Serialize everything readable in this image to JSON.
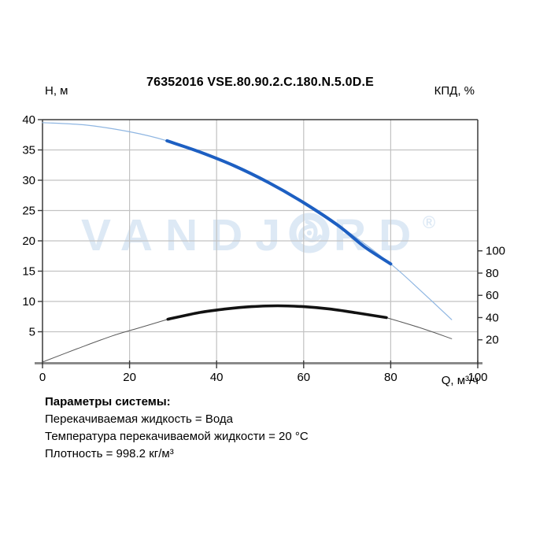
{
  "header": {
    "title": "76352016 VSE.80.90.2.C.180.N.5.0D.E"
  },
  "watermark": {
    "brand_left": "VANDJ",
    "brand_right": "RD",
    "registered_mark": "®",
    "color": "#dde9f5"
  },
  "colors": {
    "pump_operating": "#1d5fc2",
    "pump_extended": "#8fb6e2",
    "efficiency_operating": "#121212",
    "efficiency_extended": "#5a5a5a",
    "gridline": "#c2c2c2",
    "plot_border": "#3a3a3a",
    "bottom_axis": "#8a8a8a"
  },
  "chart_data": {
    "type": "line",
    "title": "76352016 VSE.80.90.2.C.180.N.5.0D.E",
    "x_axis": {
      "label": "Q, м³/ч",
      "min": 0,
      "max": 100,
      "ticks": [
        0,
        20,
        40,
        60,
        80,
        100
      ],
      "gridlines": [
        20,
        40,
        60,
        80
      ]
    },
    "y_axis_left": {
      "label": "Н, м",
      "min": 0,
      "max": 40,
      "ticks": [
        5,
        10,
        15,
        20,
        25,
        30,
        35,
        40
      ],
      "gridlines": [
        5,
        10,
        15,
        20,
        25,
        30,
        35
      ]
    },
    "y_axis_right": {
      "label": "КПД, %",
      "min": 0,
      "max": 218,
      "ticks": [
        20,
        40,
        60,
        80,
        100
      ]
    },
    "series": [
      {
        "name": "pump-curve-extended",
        "axis": "left",
        "color": "#8fb6e2",
        "width": 1.2,
        "points": [
          [
            0,
            39.5
          ],
          [
            10,
            39.1
          ],
          [
            20,
            38.0
          ],
          [
            28.6,
            36.5
          ],
          [
            40,
            33.6
          ],
          [
            50,
            30.3
          ],
          [
            60,
            26.3
          ],
          [
            70,
            21.6
          ],
          [
            80,
            16.2
          ],
          [
            87,
            11.7
          ],
          [
            94,
            7.0
          ]
        ]
      },
      {
        "name": "efficiency-curve-extended-rise",
        "axis": "right",
        "color": "#5a5a5a",
        "width": 1,
        "points": [
          [
            0,
            0
          ],
          [
            8,
            12.0
          ],
          [
            16,
            23.5
          ],
          [
            22,
            30.5
          ],
          [
            28.8,
            38.5
          ]
        ]
      },
      {
        "name": "efficiency-curve-extended-tail",
        "axis": "right",
        "color": "#5a5a5a",
        "width": 1,
        "points": [
          [
            79,
            40.0
          ],
          [
            87,
            30.5
          ],
          [
            94,
            21.0
          ]
        ]
      },
      {
        "name": "pump-curve-operating",
        "axis": "left",
        "color": "#1d5fc2",
        "width": 4,
        "points": [
          [
            28.6,
            36.5
          ],
          [
            36,
            34.7
          ],
          [
            44,
            32.4
          ],
          [
            52,
            29.6
          ],
          [
            60,
            26.3
          ],
          [
            68,
            22.5
          ],
          [
            74,
            19.0
          ],
          [
            80,
            16.2
          ]
        ]
      },
      {
        "name": "efficiency-curve-operating",
        "axis": "right",
        "color": "#121212",
        "width": 3.6,
        "points": [
          [
            28.8,
            38.5
          ],
          [
            36,
            44.5
          ],
          [
            42,
            47.7
          ],
          [
            48,
            49.8
          ],
          [
            54,
            50.6
          ],
          [
            60,
            49.8
          ],
          [
            66,
            47.7
          ],
          [
            72,
            44.3
          ],
          [
            79,
            40.0
          ]
        ]
      }
    ]
  },
  "system_parameters": {
    "heading": "Параметры системы:",
    "lines": [
      "Перекачиваемая жидкость = Вода",
      "Температура перекачиваемой жидкости = 20 °C",
      "Плотность = 998.2 кг/м³"
    ]
  }
}
